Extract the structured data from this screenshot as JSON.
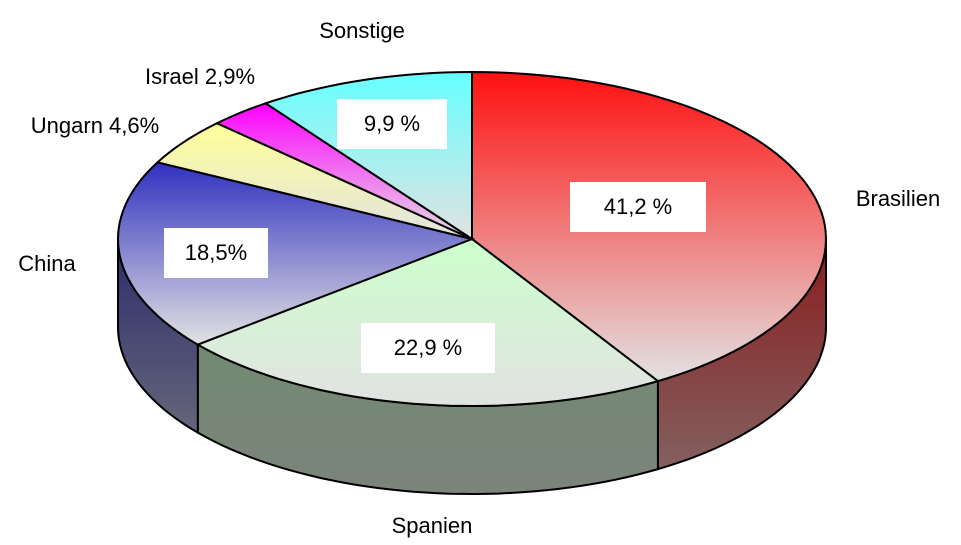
{
  "chart_data": {
    "type": "pie3d",
    "categories": [
      "Brasilien",
      "Spanien",
      "China",
      "Ungarn 4,6%",
      "Israel 2,9%",
      "Sonstige"
    ],
    "values": [
      41.2,
      22.9,
      18.5,
      4.6,
      2.9,
      9.9
    ],
    "value_labels": [
      "41,2 %",
      "22,9 %",
      "18,5%",
      null,
      null,
      "9,9 %"
    ],
    "colors": [
      "#ff1010",
      "#ccffcc",
      "#3030c0",
      "#ffff99",
      "#ff00ff",
      "#66ffff"
    ]
  }
}
